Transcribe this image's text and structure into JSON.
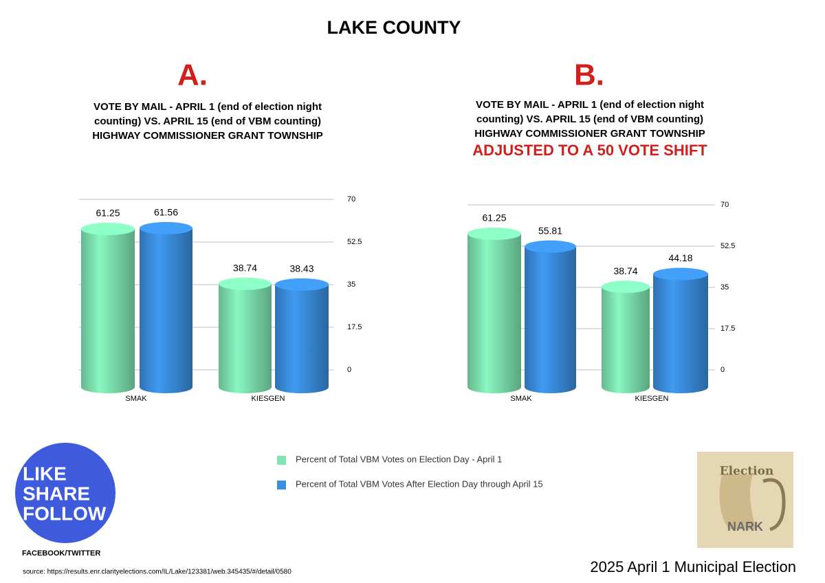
{
  "title": "LAKE COUNTY",
  "chart_data": [
    {
      "type": "bar",
      "label": "A.",
      "title": [
        "VOTE BY MAIL - APRIL 1 (end of election night",
        "counting)    VS.  APRIL 15 (end of VBM counting)",
        "HIGHWAY COMMISSIONER GRANT TOWNSHIP"
      ],
      "categories": [
        "SMAK",
        "KIESGEN"
      ],
      "series": [
        {
          "name": "Percent of Total VBM Votes on Election Day - April 1",
          "color": "#7fe5b2",
          "values": [
            61.25,
            38.74
          ]
        },
        {
          "name": "Percent of Total VBM Votes After Election Day through April 15",
          "color": "#3b8fe0",
          "values": [
            61.56,
            38.43
          ]
        }
      ],
      "ylim": [
        0,
        70
      ],
      "yticks": [
        0,
        17.5,
        35,
        52.5,
        70
      ],
      "grid": true
    },
    {
      "type": "bar",
      "label": "B.",
      "title": [
        "VOTE BY MAIL - APRIL 1 (end of election night",
        "counting)    VS.  APRIL 15 (end of VBM counting)",
        "HIGHWAY COMMISSIONER GRANT TOWNSHIP"
      ],
      "annotation": "ADJUSTED TO A 50 VOTE SHIFT",
      "categories": [
        "SMAK",
        "KIESGEN"
      ],
      "series": [
        {
          "color": "#7fe5b2",
          "values": [
            61.25,
            38.74
          ]
        },
        {
          "color": "#3b8fe0",
          "values": [
            55.81,
            44.18
          ]
        }
      ],
      "ylim": [
        0,
        70
      ],
      "yticks": [
        0,
        17.5,
        35,
        52.5,
        70
      ],
      "grid": true
    }
  ],
  "badge": {
    "lines": [
      "LIKE",
      "SHARE",
      "FOLLOW"
    ],
    "caption": "FACEBOOK/TWITTER"
  },
  "logo": {
    "top": "Election",
    "bottom": "NARK"
  },
  "source": "source: https://results.enr.clarityelections.com/IL/Lake/123381/web.345435/#/detail/0580",
  "footer": "2025 April 1 Municipal Election"
}
